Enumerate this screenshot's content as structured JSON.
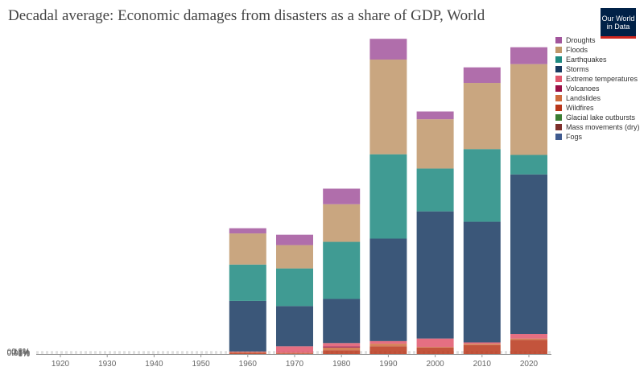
{
  "header": {
    "title": "Decadal average: Economic damages from disasters as a share of GDP, World",
    "logo_line1": "Our World",
    "logo_line2": "in Data"
  },
  "chart_data": {
    "type": "bar",
    "stacked": true,
    "title": "Decadal average: Economic damages from disasters as a share of GDP, World",
    "x_ticks": [
      "1920",
      "1930",
      "1940",
      "1950",
      "1960",
      "1970",
      "1980",
      "1990",
      "2000",
      "2010",
      "2020"
    ],
    "y_ticks": [
      "0%",
      "0.05%",
      "0.1%",
      "0.15%",
      "0.2%"
    ],
    "ylim": [
      0,
      0.245
    ],
    "grid": true,
    "legend_position": "right",
    "series": [
      {
        "name": "Droughts",
        "color": "#a2559c",
        "values": [
          0,
          0,
          0,
          0,
          0.004,
          0.008,
          0.012,
          0.016,
          0.006,
          0.012,
          0.013
        ]
      },
      {
        "name": "Floods",
        "color": "#c0976a",
        "values": [
          0,
          0,
          0,
          0,
          0.024,
          0.018,
          0.029,
          0.073,
          0.038,
          0.051,
          0.07
        ]
      },
      {
        "name": "Earthquakes",
        "color": "#1e8a80",
        "values": [
          0,
          0,
          0,
          0,
          0.028,
          0.029,
          0.044,
          0.065,
          0.033,
          0.056,
          0.015
        ]
      },
      {
        "name": "Storms",
        "color": "#193a61",
        "values": [
          0,
          0,
          0,
          0,
          0.039,
          0.031,
          0.034,
          0.079,
          0.098,
          0.093,
          0.123
        ]
      },
      {
        "name": "Extreme temperatures",
        "color": "#e0566c",
        "values": [
          0,
          0,
          0,
          0,
          0.0005,
          0.005,
          0.0025,
          0.002,
          0.0065,
          0.001,
          0.0035
        ]
      },
      {
        "name": "Volcanoes",
        "color": "#9a0f45",
        "values": [
          0,
          0,
          0,
          0,
          0,
          0,
          0.001,
          0,
          0,
          0,
          0
        ]
      },
      {
        "name": "Landslides",
        "color": "#ce6b3c",
        "values": [
          0,
          0,
          0,
          0,
          0.0005,
          0.0005,
          0.002,
          0.002,
          0.0005,
          0.001,
          0.001
        ]
      },
      {
        "name": "Wildfires",
        "color": "#b8361a",
        "values": [
          0,
          0,
          0,
          0,
          0.001,
          0.0005,
          0.003,
          0.006,
          0.005,
          0.007,
          0.011
        ]
      },
      {
        "name": "Glacial lake outbursts",
        "color": "#3a7d33",
        "values": [
          0,
          0,
          0,
          0,
          0,
          0,
          0,
          0,
          0,
          0,
          0
        ]
      },
      {
        "name": "Mass movements (dry)",
        "color": "#7d2f2b",
        "values": [
          0,
          0,
          0,
          0,
          0,
          0,
          0,
          0,
          0,
          0,
          0
        ]
      },
      {
        "name": "Fogs",
        "color": "#3f5a8f",
        "values": [
          0,
          0,
          0,
          0,
          0,
          0,
          0,
          0,
          0,
          0,
          0
        ]
      }
    ]
  }
}
